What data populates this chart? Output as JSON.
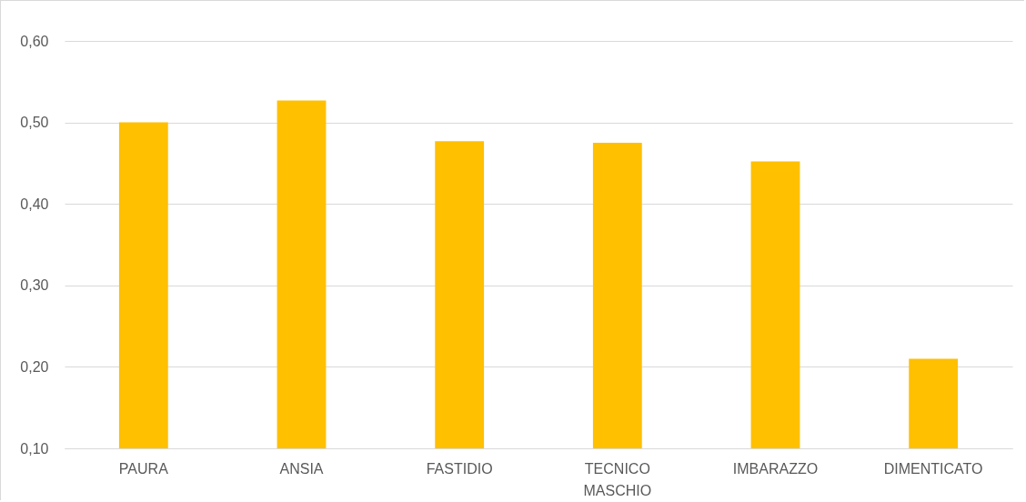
{
  "chart_data": {
    "type": "bar",
    "categories": [
      "PAURA",
      "ANSIA",
      "FASTIDIO",
      "TECNICO MASCHIO",
      "IMBARAZZO",
      "DIMENTICATO"
    ],
    "values": [
      0.5,
      0.527,
      0.477,
      0.475,
      0.452,
      0.21
    ],
    "color": "#ffc000",
    "ylim": [
      0.1,
      0.6
    ],
    "yticks": [
      {
        "value": 0.1,
        "label": "0,10"
      },
      {
        "value": 0.2,
        "label": "0,20"
      },
      {
        "value": 0.3,
        "label": "0,30"
      },
      {
        "value": 0.4,
        "label": "0,40"
      },
      {
        "value": 0.5,
        "label": "0,50"
      },
      {
        "value": 0.6,
        "label": "0,60"
      }
    ],
    "grid": "y"
  }
}
